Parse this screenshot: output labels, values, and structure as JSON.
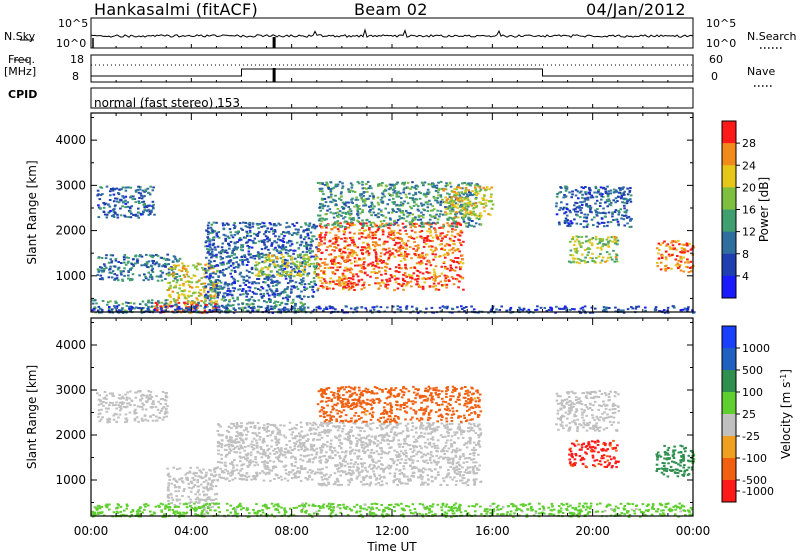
{
  "header": {
    "station": "Hankasalmi (fitACF)",
    "beam": "Beam 02",
    "date": "04/Jan/2012"
  },
  "strips": {
    "nsky_label": "N.Sky",
    "nsky_top": "10^5",
    "nsky_bottom": "10^0",
    "nsearch_label": "N.Search",
    "nsearch_top": "10^5",
    "nsearch_bottom": "10^0",
    "freq_label": "Freq.",
    "freq_unit": "[MHz]",
    "freq_top": "18",
    "freq_bottom": "8",
    "nave_label": "Nave",
    "nave_top": "60",
    "nave_bottom": "0",
    "cpid_label": "CPID",
    "cpid_text": "normal (fast stereo) 153"
  },
  "colors": {
    "power_scale": [
      "#1a1aff",
      "#1f3fb0",
      "#2f6fa0",
      "#3f9f6f",
      "#7fbf3f",
      "#e6c619",
      "#f08a1a",
      "#ff1a1a"
    ],
    "velocity_scale": [
      "#1a3fff",
      "#2060c0",
      "#2f8f4f",
      "#5fcf2f",
      "#c0c0c0",
      "#f0a020",
      "#f06010",
      "#ff1a1a"
    ],
    "ground_scatter": "#c0c0c0"
  },
  "chart_data": [
    {
      "type": "heatmap",
      "name": "power",
      "xlabel": "",
      "ylabel": "Slant Range [km]",
      "yticks": [
        "1000",
        "2000",
        "3000",
        "4000"
      ],
      "ylim": [
        200,
        4600
      ],
      "xlim": [
        0,
        24
      ],
      "colorbar_label": "Power [dB]",
      "colorbar_ticks": [
        "4",
        "8",
        "12",
        "16",
        "20",
        "24",
        "28"
      ],
      "colorbar_range": [
        0,
        30
      ],
      "regions": [
        {
          "x": [
            0.2,
            2.5
          ],
          "y": [
            2300,
            3000
          ],
          "value": 8
        },
        {
          "x": [
            0.2,
            3.5
          ],
          "y": [
            900,
            1500
          ],
          "value": 10
        },
        {
          "x": [
            0.0,
            8.5
          ],
          "y": [
            200,
            500
          ],
          "value": 12
        },
        {
          "x": [
            2.5,
            5.0
          ],
          "y": [
            200,
            450
          ],
          "value": 26
        },
        {
          "x": [
            3.0,
            5.0
          ],
          "y": [
            400,
            1300
          ],
          "value": 20
        },
        {
          "x": [
            4.5,
            9.0
          ],
          "y": [
            500,
            2200
          ],
          "value": 8
        },
        {
          "x": [
            6.5,
            9.0
          ],
          "y": [
            1000,
            1500
          ],
          "value": 18
        },
        {
          "x": [
            9.0,
            14.8
          ],
          "y": [
            700,
            2200
          ],
          "value": 26
        },
        {
          "x": [
            9.0,
            15.5
          ],
          "y": [
            2100,
            3100
          ],
          "value": 12
        },
        {
          "x": [
            14.0,
            16.0
          ],
          "y": [
            2300,
            3000
          ],
          "value": 20
        },
        {
          "x": [
            18.5,
            21.5
          ],
          "y": [
            2100,
            3000
          ],
          "value": 8
        },
        {
          "x": [
            19.0,
            21.0
          ],
          "y": [
            1300,
            1900
          ],
          "value": 18
        },
        {
          "x": [
            22.5,
            24.0
          ],
          "y": [
            1100,
            1800
          ],
          "value": 24
        },
        {
          "x": [
            0.0,
            24.0
          ],
          "y": [
            200,
            350
          ],
          "value": 6
        }
      ]
    },
    {
      "type": "heatmap",
      "name": "velocity",
      "xlabel": "Time UT",
      "ylabel": "Slant Range [km]",
      "xticks": [
        "00:00",
        "04:00",
        "08:00",
        "12:00",
        "16:00",
        "20:00",
        "00:00"
      ],
      "yticks": [
        "1000",
        "2000",
        "3000",
        "4000"
      ],
      "ylim": [
        200,
        4600
      ],
      "xlim": [
        0,
        24
      ],
      "colorbar_label": "Velocity [m s^-1]",
      "colorbar_ticks": [
        "1000",
        "500",
        "100",
        "25",
        "-25",
        "-100",
        "-500",
        "-1000"
      ],
      "regions": [
        {
          "x": [
            0.2,
            3.0
          ],
          "y": [
            2300,
            3000
          ],
          "value": "ground"
        },
        {
          "x": [
            3.0,
            5.0
          ],
          "y": [
            400,
            1300
          ],
          "value": "ground"
        },
        {
          "x": [
            5.0,
            9.0
          ],
          "y": [
            1000,
            2300
          ],
          "value": "ground"
        },
        {
          "x": [
            9.0,
            15.5
          ],
          "y": [
            900,
            2300
          ],
          "value": "ground"
        },
        {
          "x": [
            9.0,
            15.5
          ],
          "y": [
            2300,
            3100
          ],
          "value": -300
        },
        {
          "x": [
            19.0,
            21.0
          ],
          "y": [
            1300,
            1900
          ],
          "value": -600
        },
        {
          "x": [
            18.5,
            21.0
          ],
          "y": [
            2100,
            3000
          ],
          "value": "ground"
        },
        {
          "x": [
            22.5,
            24.0
          ],
          "y": [
            1100,
            1800
          ],
          "value": 200
        },
        {
          "x": [
            0.0,
            24.0
          ],
          "y": [
            200,
            500
          ],
          "value": 50
        }
      ]
    }
  ]
}
